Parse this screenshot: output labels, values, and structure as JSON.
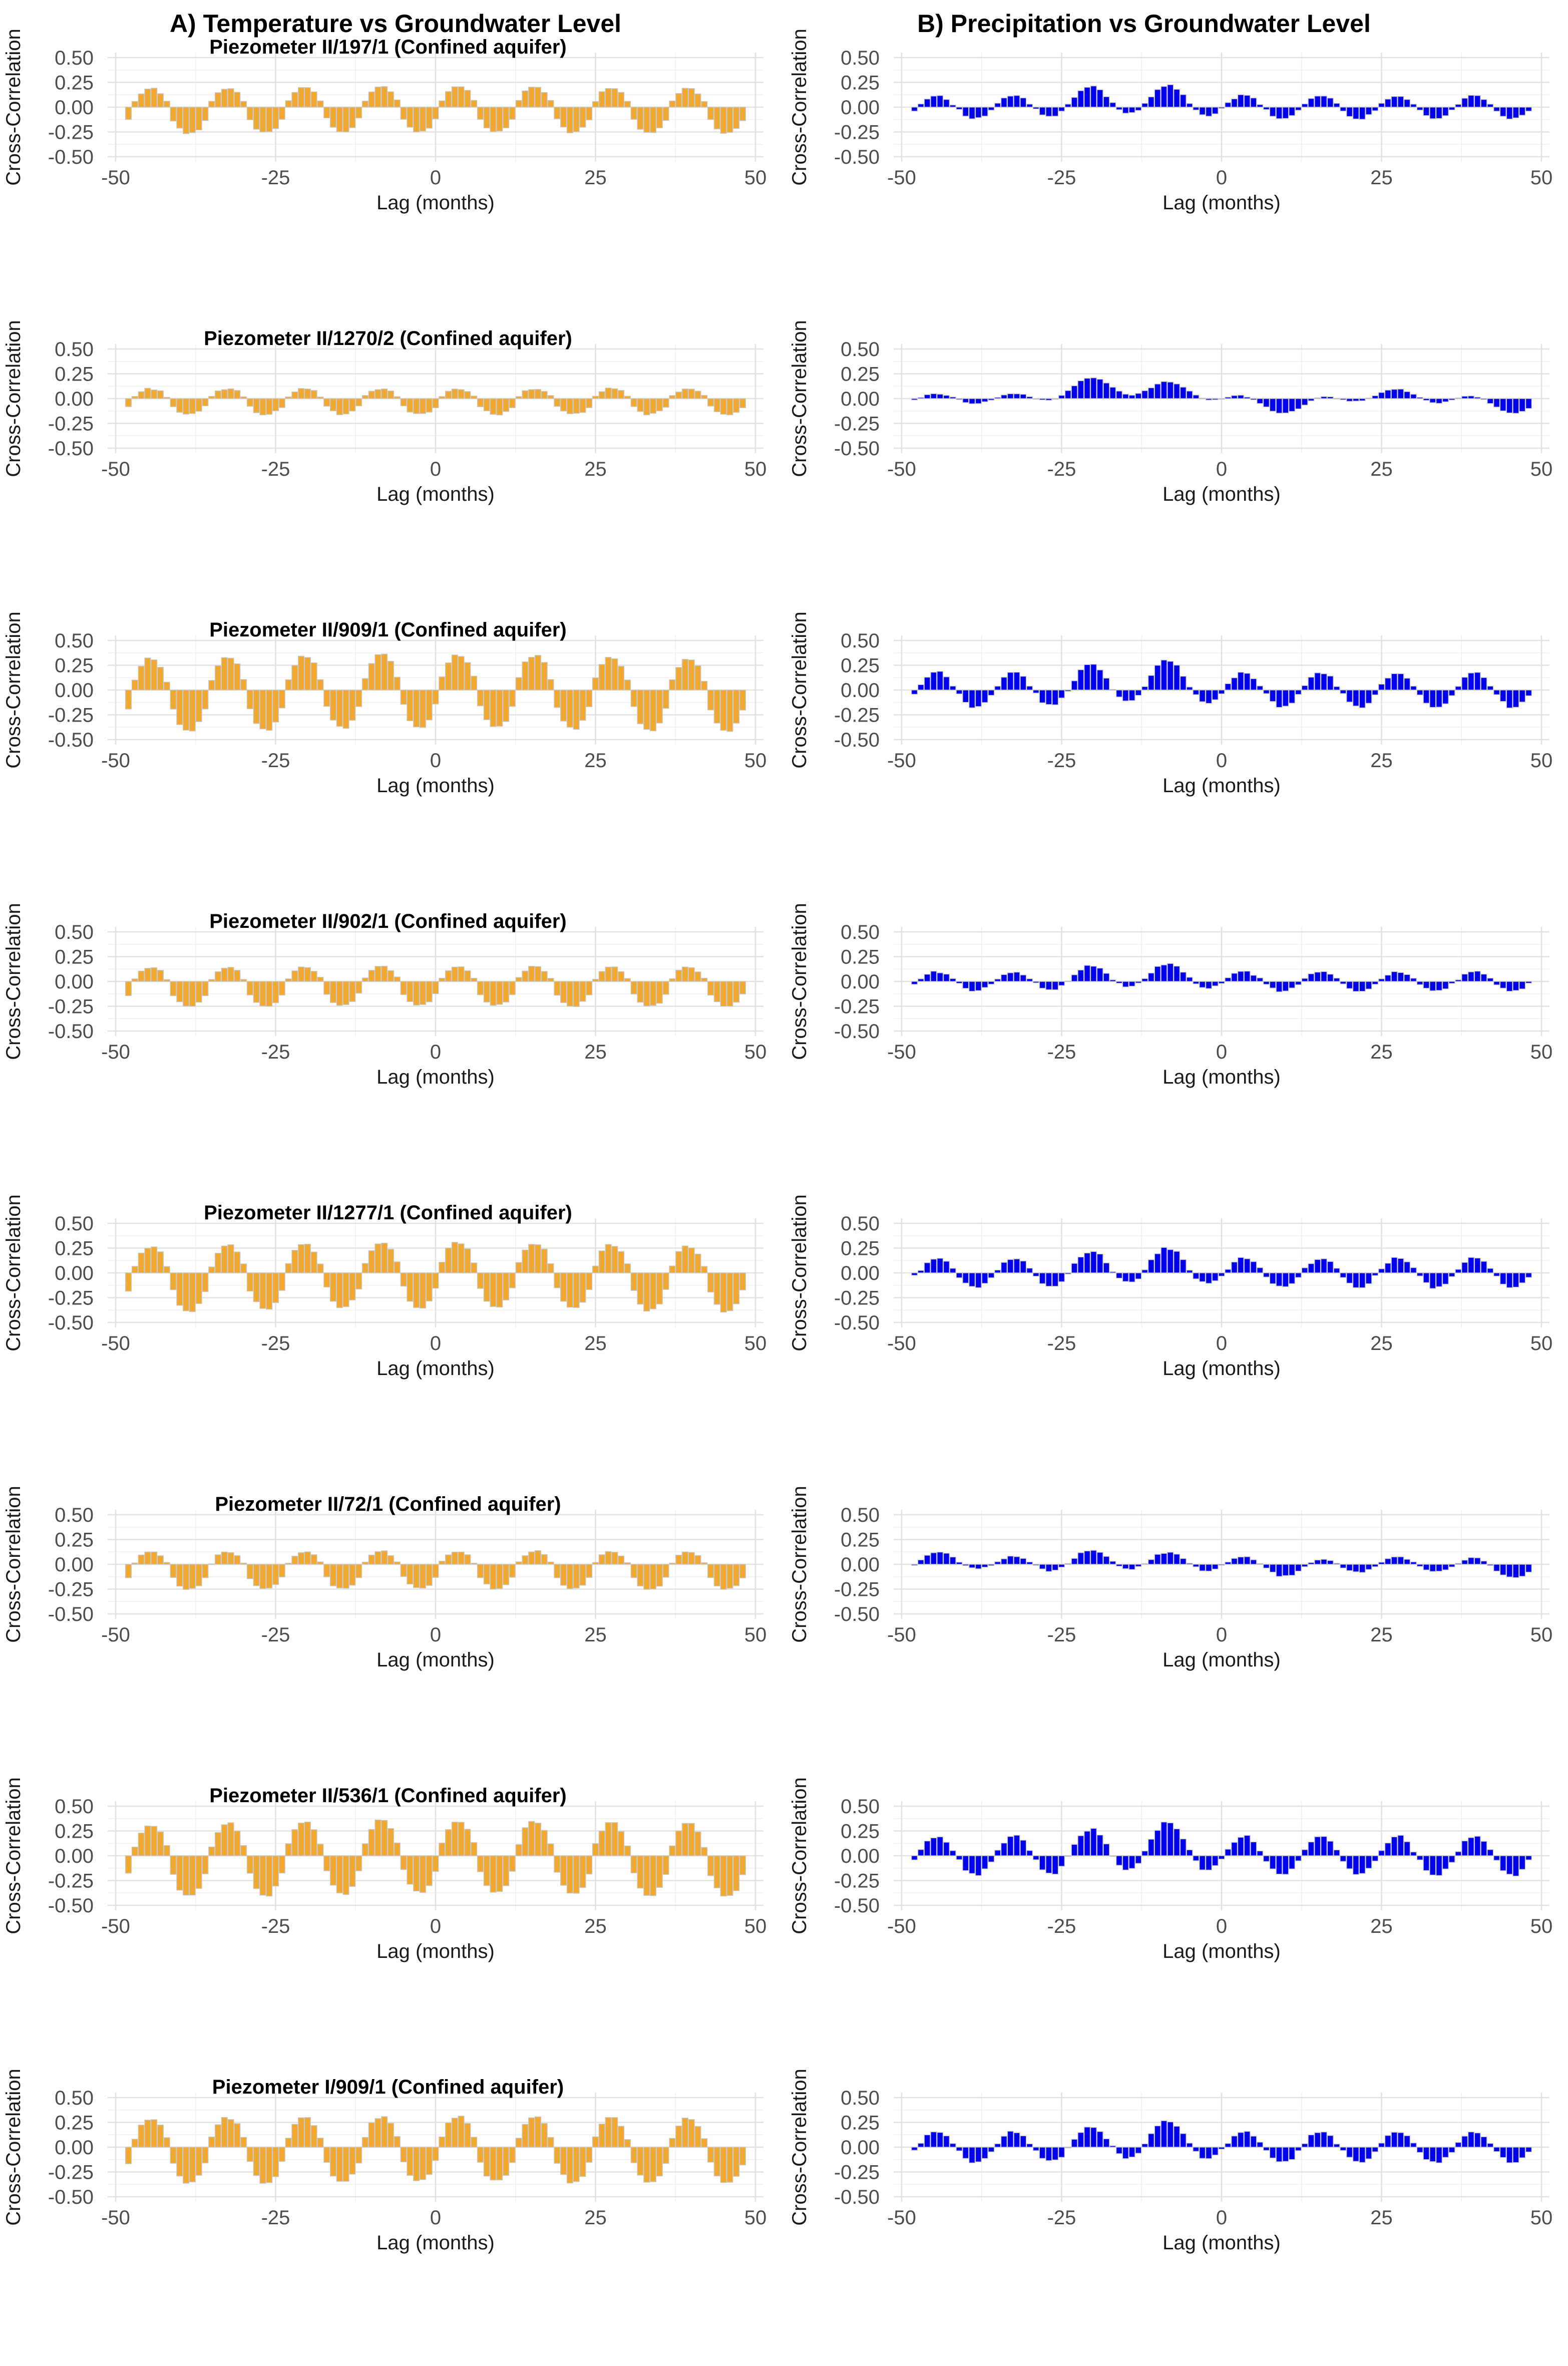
{
  "figure": {
    "column_titles": [
      "A) Temperature vs Groundwater Level",
      "B) Precipitation vs Groundwater Level"
    ],
    "colors": {
      "temperature_fill": "#f0a830",
      "temperature_outline": "#c9c9c9",
      "precipitation_fill": "#0000ee",
      "precipitation_outline": "#c9c9c9"
    }
  },
  "chart_data": [
    {
      "type": "bar",
      "panel": "A",
      "title": "Piezometer II/197/1 (Confined aquifer)",
      "xlabel": "Lag (months)",
      "ylabel": "Cross-Correlation",
      "x_ticks": [
        -50,
        -25,
        0,
        25,
        50
      ],
      "y_ticks": [
        "-0.50",
        "-0.25",
        "0.00",
        "0.25",
        "0.50"
      ],
      "xlim": [
        -50,
        50
      ],
      "ylim": [
        -0.5,
        0.5
      ],
      "lags": [
        -48,
        48
      ],
      "wave": {
        "amplitude": 0.23,
        "period": 12,
        "phase": -44.5,
        "bias": -0.03,
        "trend": 0.01,
        "shape": 1.5,
        "noise": 0.01
      }
    },
    {
      "type": "bar",
      "panel": "B",
      "title": "",
      "xlabel": "Lag (months)",
      "ylabel": "Cross-Correlation",
      "x_ticks": [
        -50,
        -25,
        0,
        25,
        50
      ],
      "y_ticks": [
        "-0.50",
        "-0.25",
        "0.00",
        "0.25",
        "0.50"
      ],
      "xlim": [
        -50,
        50
      ],
      "ylim": [
        -0.5,
        0.5
      ],
      "lags": [
        -48,
        48
      ],
      "wave": {
        "amplitude": 0.12,
        "period": 12,
        "phase": -44.5,
        "bias": 0.0,
        "envelope": [
          [
            -20,
            0.09
          ],
          [
            -8,
            0.1
          ]
        ],
        "noise": 0.01
      }
    },
    {
      "type": "bar",
      "panel": "A",
      "title": "Piezometer II/1270/2 (Confined aquifer)",
      "xlabel": "Lag (months)",
      "ylabel": "Cross-Correlation",
      "x_ticks": [
        -50,
        -25,
        0,
        25,
        50
      ],
      "y_ticks": [
        "-0.50",
        "-0.25",
        "0.00",
        "0.25",
        "0.50"
      ],
      "xlim": [
        -50,
        50
      ],
      "ylim": [
        -0.5,
        0.5
      ],
      "lags": [
        -48,
        48
      ],
      "wave": {
        "amplitude": 0.13,
        "period": 12,
        "phase": -44.5,
        "bias": -0.03,
        "trend": 0.0,
        "shape": 1.5,
        "noise": 0.01
      }
    },
    {
      "type": "bar",
      "panel": "B",
      "title": "",
      "xlabel": "Lag (months)",
      "ylabel": "Cross-Correlation",
      "x_ticks": [
        -50,
        -25,
        0,
        25,
        50
      ],
      "y_ticks": [
        "-0.50",
        "-0.25",
        "0.00",
        "0.25",
        "0.50"
      ],
      "xlim": [
        -50,
        50
      ],
      "ylim": [
        -0.5,
        0.5
      ],
      "lags": [
        -48,
        48
      ],
      "wave": {
        "amplitude": 0.05,
        "period": 12,
        "phase": -44.5,
        "bias": 0.0,
        "envelope": [
          [
            -20,
            0.16
          ],
          [
            -8,
            0.12
          ],
          [
            10,
            -0.1
          ],
          [
            26,
            0.05
          ],
          [
            46,
            -0.1
          ]
        ],
        "noise": 0.005
      }
    },
    {
      "type": "bar",
      "panel": "A",
      "title": "Piezometer II/909/1 (Confined aquifer)",
      "xlabel": "Lag (months)",
      "ylabel": "Cross-Correlation",
      "x_ticks": [
        -50,
        -25,
        0,
        25,
        50
      ],
      "y_ticks": [
        "-0.50",
        "-0.25",
        "0.00",
        "0.25",
        "0.50"
      ],
      "xlim": [
        -50,
        50
      ],
      "ylim": [
        -0.5,
        0.5
      ],
      "lags": [
        -48,
        48
      ],
      "wave": {
        "amplitude": 0.37,
        "period": 12,
        "phase": -44.5,
        "bias": -0.03,
        "trend": 0.02,
        "shape": 1.4,
        "noise": 0.015
      }
    },
    {
      "type": "bar",
      "panel": "B",
      "title": "",
      "xlabel": "Lag (months)",
      "ylabel": "Cross-Correlation",
      "x_ticks": [
        -50,
        -25,
        0,
        25,
        50
      ],
      "y_ticks": [
        "-0.50",
        "-0.25",
        "0.00",
        "0.25",
        "0.50"
      ],
      "xlim": [
        -50,
        50
      ],
      "ylim": [
        -0.5,
        0.5
      ],
      "lags": [
        -48,
        48
      ],
      "wave": {
        "amplitude": 0.18,
        "period": 12,
        "phase": -44.5,
        "bias": 0.0,
        "envelope": [
          [
            -20,
            0.08
          ],
          [
            -8,
            0.12
          ]
        ],
        "noise": 0.015
      }
    },
    {
      "type": "bar",
      "panel": "A",
      "title": "Piezometer II/902/1 (Confined aquifer)",
      "xlabel": "Lag (months)",
      "ylabel": "Cross-Correlation",
      "x_ticks": [
        -50,
        -25,
        0,
        25,
        50
      ],
      "y_ticks": [
        "-0.50",
        "-0.25",
        "0.00",
        "0.25",
        "0.50"
      ],
      "xlim": [
        -50,
        50
      ],
      "ylim": [
        -0.5,
        0.5
      ],
      "lags": [
        -48,
        48
      ],
      "wave": {
        "amplitude": 0.2,
        "period": 12,
        "phase": -44.5,
        "bias": -0.05,
        "trend": 0.005,
        "shape": 1.5,
        "noise": 0.01
      }
    },
    {
      "type": "bar",
      "panel": "B",
      "title": "",
      "xlabel": "Lag (months)",
      "ylabel": "Cross-Correlation",
      "x_ticks": [
        -50,
        -25,
        0,
        25,
        50
      ],
      "y_ticks": [
        "-0.50",
        "-0.25",
        "0.00",
        "0.25",
        "0.50"
      ],
      "xlim": [
        -50,
        50
      ],
      "ylim": [
        -0.5,
        0.5
      ],
      "lags": [
        -48,
        48
      ],
      "wave": {
        "amplitude": 0.1,
        "period": 12,
        "phase": -44.5,
        "bias": 0.0,
        "envelope": [
          [
            -20,
            0.06
          ],
          [
            -8,
            0.08
          ]
        ],
        "noise": 0.01
      }
    },
    {
      "type": "bar",
      "panel": "A",
      "title": "Piezometer II/1277/1 (Confined aquifer)",
      "xlabel": "Lag (months)",
      "ylabel": "Cross-Correlation",
      "x_ticks": [
        -50,
        -25,
        0,
        25,
        50
      ],
      "y_ticks": [
        "-0.50",
        "-0.25",
        "0.00",
        "0.25",
        "0.50"
      ],
      "xlim": [
        -50,
        50
      ],
      "ylim": [
        -0.5,
        0.5
      ],
      "lags": [
        -48,
        48
      ],
      "wave": {
        "amplitude": 0.33,
        "period": 12,
        "phase": -44.5,
        "bias": -0.04,
        "trend": 0.02,
        "shape": 1.4,
        "noise": 0.015
      }
    },
    {
      "type": "bar",
      "panel": "B",
      "title": "",
      "xlabel": "Lag (months)",
      "ylabel": "Cross-Correlation",
      "x_ticks": [
        -50,
        -25,
        0,
        25,
        50
      ],
      "y_ticks": [
        "-0.50",
        "-0.25",
        "0.00",
        "0.25",
        "0.50"
      ],
      "xlim": [
        -50,
        50
      ],
      "ylim": [
        -0.5,
        0.5
      ],
      "lags": [
        -48,
        48
      ],
      "wave": {
        "amplitude": 0.15,
        "period": 12,
        "phase": -44.5,
        "bias": 0.0,
        "envelope": [
          [
            -20,
            0.07
          ],
          [
            -8,
            0.1
          ]
        ],
        "noise": 0.015
      }
    },
    {
      "type": "bar",
      "panel": "A",
      "title": "Piezometer II/72/1 (Confined aquifer)",
      "xlabel": "Lag (months)",
      "ylabel": "Cross-Correlation",
      "x_ticks": [
        -50,
        -25,
        0,
        25,
        50
      ],
      "y_ticks": [
        "-0.50",
        "-0.25",
        "0.00",
        "0.25",
        "0.50"
      ],
      "xlim": [
        -50,
        50
      ],
      "ylim": [
        -0.5,
        0.5
      ],
      "lags": [
        -48,
        48
      ],
      "wave": {
        "amplitude": 0.19,
        "period": 12,
        "phase": -44.5,
        "bias": -0.06,
        "trend": 0.005,
        "shape": 1.5,
        "noise": 0.01
      }
    },
    {
      "type": "bar",
      "panel": "B",
      "title": "",
      "xlabel": "Lag (months)",
      "ylabel": "Cross-Correlation",
      "x_ticks": [
        -50,
        -25,
        0,
        25,
        50
      ],
      "y_ticks": [
        "-0.50",
        "-0.25",
        "0.00",
        "0.25",
        "0.50"
      ],
      "xlim": [
        -50,
        50
      ],
      "ylim": [
        -0.5,
        0.5
      ],
      "lags": [
        -48,
        48
      ],
      "wave": {
        "amplitude": 0.08,
        "period": 12,
        "phase": -44.5,
        "bias": 0.0,
        "envelope": [
          [
            -42,
            0.05
          ],
          [
            -20,
            0.06
          ],
          [
            -8,
            0.04
          ],
          [
            12,
            -0.05
          ],
          [
            46,
            -0.06
          ]
        ],
        "noise": 0.008
      }
    },
    {
      "type": "bar",
      "panel": "A",
      "title": "Piezometer II/536/1 (Confined aquifer)",
      "xlabel": "Lag (months)",
      "ylabel": "Cross-Correlation",
      "x_ticks": [
        -50,
        -25,
        0,
        25,
        50
      ],
      "y_ticks": [
        "-0.50",
        "-0.25",
        "0.00",
        "0.25",
        "0.50"
      ],
      "xlim": [
        -50,
        50
      ],
      "ylim": [
        -0.5,
        0.5
      ],
      "lags": [
        -48,
        48
      ],
      "wave": {
        "amplitude": 0.37,
        "period": 12,
        "phase": -44.5,
        "bias": -0.03,
        "trend": 0.02,
        "shape": 1.4,
        "noise": 0.015
      }
    },
    {
      "type": "bar",
      "panel": "B",
      "title": "",
      "xlabel": "Lag (months)",
      "ylabel": "Cross-Correlation",
      "x_ticks": [
        -50,
        -25,
        0,
        25,
        50
      ],
      "y_ticks": [
        "-0.50",
        "-0.25",
        "0.00",
        "0.25",
        "0.50"
      ],
      "xlim": [
        -50,
        50
      ],
      "ylim": [
        -0.5,
        0.5
      ],
      "lags": [
        -48,
        48
      ],
      "wave": {
        "amplitude": 0.2,
        "period": 12,
        "phase": -44.5,
        "bias": 0.0,
        "envelope": [
          [
            -20,
            0.07
          ],
          [
            -8,
            0.14
          ]
        ],
        "noise": 0.015
      }
    },
    {
      "type": "bar",
      "panel": "A",
      "title": "Piezometer I/909/1 (Confined aquifer)",
      "xlabel": "Lag (months)",
      "ylabel": "Cross-Correlation",
      "x_ticks": [
        -50,
        -25,
        0,
        25,
        50
      ],
      "y_ticks": [
        "-0.50",
        "-0.25",
        "0.00",
        "0.25",
        "0.50"
      ],
      "xlim": [
        -50,
        50
      ],
      "ylim": [
        -0.5,
        0.5
      ],
      "lags": [
        -48,
        48
      ],
      "wave": {
        "amplitude": 0.33,
        "period": 12,
        "phase": -44.5,
        "bias": -0.03,
        "trend": 0.01,
        "shape": 1.4,
        "noise": 0.015
      }
    },
    {
      "type": "bar",
      "panel": "B",
      "title": "",
      "xlabel": "Lag (months)",
      "ylabel": "Cross-Correlation",
      "x_ticks": [
        -50,
        -25,
        0,
        25,
        50
      ],
      "y_ticks": [
        "-0.50",
        "-0.25",
        "0.00",
        "0.25",
        "0.50"
      ],
      "xlim": [
        -50,
        50
      ],
      "ylim": [
        -0.5,
        0.5
      ],
      "lags": [
        -48,
        48
      ],
      "wave": {
        "amplitude": 0.16,
        "period": 12,
        "phase": -44.5,
        "bias": 0.0,
        "envelope": [
          [
            -20,
            0.05
          ],
          [
            -8,
            0.11
          ]
        ],
        "noise": 0.012
      }
    }
  ]
}
